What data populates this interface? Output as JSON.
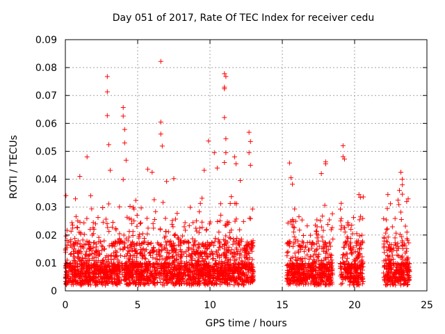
{
  "chart_data": {
    "type": "scatter",
    "title": "Day 051 of 2017, Rate Of TEC Index for receiver cedu",
    "xlabel": "GPS time / hours",
    "ylabel": "ROTI / TECUs",
    "xlim": [
      0,
      25
    ],
    "ylim": [
      0,
      0.09
    ],
    "xticks": [
      0,
      5,
      10,
      15,
      20,
      25
    ],
    "yticks": [
      0,
      0.01,
      0.02,
      0.03,
      0.04,
      0.05,
      0.06,
      0.07,
      0.08,
      0.09
    ],
    "xtick_labels": [
      "0",
      "5",
      "10",
      "15",
      "20",
      "25"
    ],
    "ytick_labels": [
      "0",
      "0.01",
      "0.02",
      "0.03",
      "0.04",
      "0.05",
      "0.06",
      "0.07",
      "0.08",
      "0.09"
    ],
    "grid": true,
    "marker": "+",
    "marker_color": "#ff0000",
    "data_intervals_hours": [
      [
        0.0,
        13.0
      ],
      [
        15.3,
        18.5
      ],
      [
        19.0,
        20.6
      ],
      [
        22.0,
        23.8
      ]
    ],
    "points": [
      {
        "x": 2.9,
        "y": 0.0768
      },
      {
        "x": 2.9,
        "y": 0.0713
      },
      {
        "x": 2.9,
        "y": 0.0628
      },
      {
        "x": 3.0,
        "y": 0.0524
      },
      {
        "x": 3.1,
        "y": 0.0432
      },
      {
        "x": 4.0,
        "y": 0.0657
      },
      {
        "x": 4.0,
        "y": 0.0626
      },
      {
        "x": 4.1,
        "y": 0.0578
      },
      {
        "x": 4.1,
        "y": 0.053
      },
      {
        "x": 4.2,
        "y": 0.0468
      },
      {
        "x": 4.0,
        "y": 0.0399
      },
      {
        "x": 6.6,
        "y": 0.0822
      },
      {
        "x": 6.6,
        "y": 0.0605
      },
      {
        "x": 6.6,
        "y": 0.0562
      },
      {
        "x": 6.7,
        "y": 0.0519
      },
      {
        "x": 11.0,
        "y": 0.0778
      },
      {
        "x": 11.1,
        "y": 0.0768
      },
      {
        "x": 11.0,
        "y": 0.073
      },
      {
        "x": 11.0,
        "y": 0.0724
      },
      {
        "x": 11.0,
        "y": 0.0621
      },
      {
        "x": 11.1,
        "y": 0.0545
      },
      {
        "x": 11.1,
        "y": 0.0495
      },
      {
        "x": 11.0,
        "y": 0.046
      },
      {
        "x": 12.7,
        "y": 0.0568
      },
      {
        "x": 12.8,
        "y": 0.0535
      },
      {
        "x": 12.7,
        "y": 0.0495
      },
      {
        "x": 12.8,
        "y": 0.045
      },
      {
        "x": 9.9,
        "y": 0.0537
      },
      {
        "x": 9.6,
        "y": 0.0432
      },
      {
        "x": 10.3,
        "y": 0.0495
      },
      {
        "x": 10.5,
        "y": 0.044
      },
      {
        "x": 1.5,
        "y": 0.048
      },
      {
        "x": 1.0,
        "y": 0.041
      },
      {
        "x": 5.7,
        "y": 0.0436
      },
      {
        "x": 6.0,
        "y": 0.0425
      },
      {
        "x": 7.5,
        "y": 0.0402
      },
      {
        "x": 7.0,
        "y": 0.0392
      },
      {
        "x": 11.7,
        "y": 0.048
      },
      {
        "x": 11.8,
        "y": 0.0455
      },
      {
        "x": 12.1,
        "y": 0.0395
      },
      {
        "x": 15.5,
        "y": 0.0458
      },
      {
        "x": 15.6,
        "y": 0.0405
      },
      {
        "x": 15.7,
        "y": 0.0382
      },
      {
        "x": 18.0,
        "y": 0.0462
      },
      {
        "x": 18.0,
        "y": 0.0455
      },
      {
        "x": 17.7,
        "y": 0.042
      },
      {
        "x": 19.2,
        "y": 0.052
      },
      {
        "x": 19.2,
        "y": 0.0481
      },
      {
        "x": 19.3,
        "y": 0.0472
      },
      {
        "x": 20.3,
        "y": 0.0345
      },
      {
        "x": 20.4,
        "y": 0.0335
      },
      {
        "x": 23.2,
        "y": 0.0425
      },
      {
        "x": 23.3,
        "y": 0.04
      },
      {
        "x": 23.3,
        "y": 0.038
      },
      {
        "x": 23.1,
        "y": 0.036
      },
      {
        "x": 22.3,
        "y": 0.0345
      },
      {
        "x": 23.0,
        "y": 0.0325
      },
      {
        "x": 23.6,
        "y": 0.032
      }
    ]
  }
}
